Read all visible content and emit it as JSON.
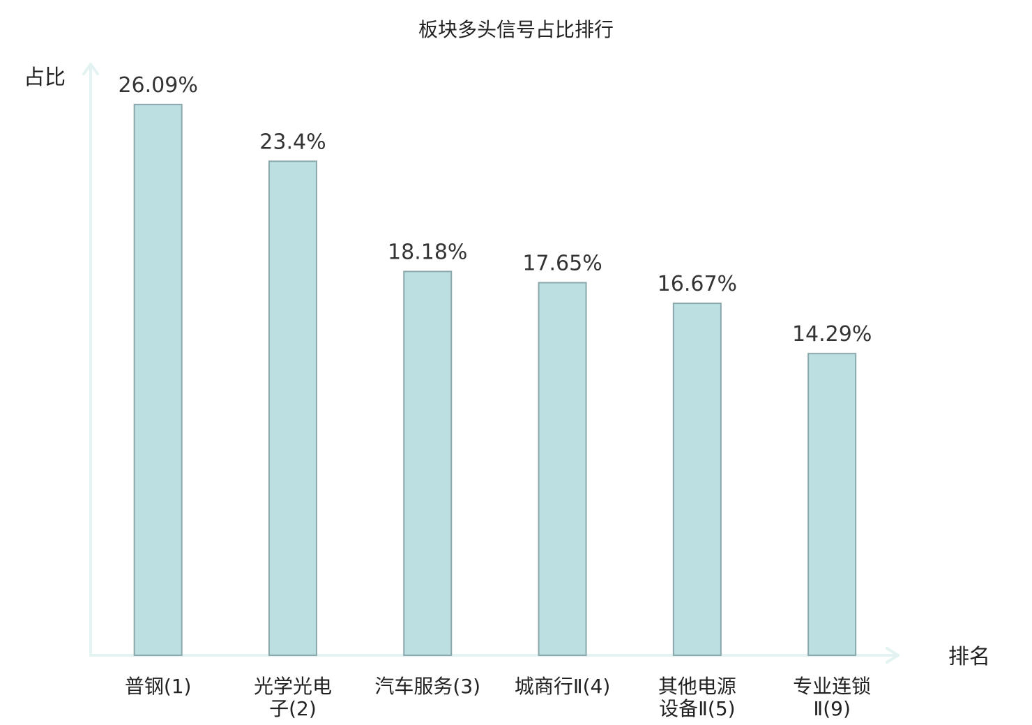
{
  "chart_data": {
    "type": "bar",
    "title": "板块多头信号占比排行",
    "ylabel": "占比",
    "xlabel": "排名",
    "ylim": [
      0,
      28
    ],
    "grid": false,
    "categories": [
      [
        "普钢(1)"
      ],
      [
        "光学光电",
        "子(2)"
      ],
      [
        "汽车服务(3)"
      ],
      [
        "城商行Ⅱ(4)"
      ],
      [
        "其他电源",
        "设备Ⅱ(5)"
      ],
      [
        "专业连锁",
        "Ⅱ(9)"
      ]
    ],
    "category_colors": [
      "#222222",
      "#222222",
      "#222222",
      "#222222",
      "#222222",
      "#e8121b"
    ],
    "values": [
      26.09,
      23.4,
      18.18,
      17.65,
      16.67,
      14.29
    ],
    "value_labels": [
      "26.09%",
      "23.4%",
      "18.18%",
      "17.65%",
      "16.67%",
      "14.29%"
    ],
    "colors": {
      "bar_fill": "#bce0e2",
      "bar_stroke": "#8aa8ab",
      "axis": "#e2f3f1",
      "highlight": "#e8121b"
    }
  }
}
